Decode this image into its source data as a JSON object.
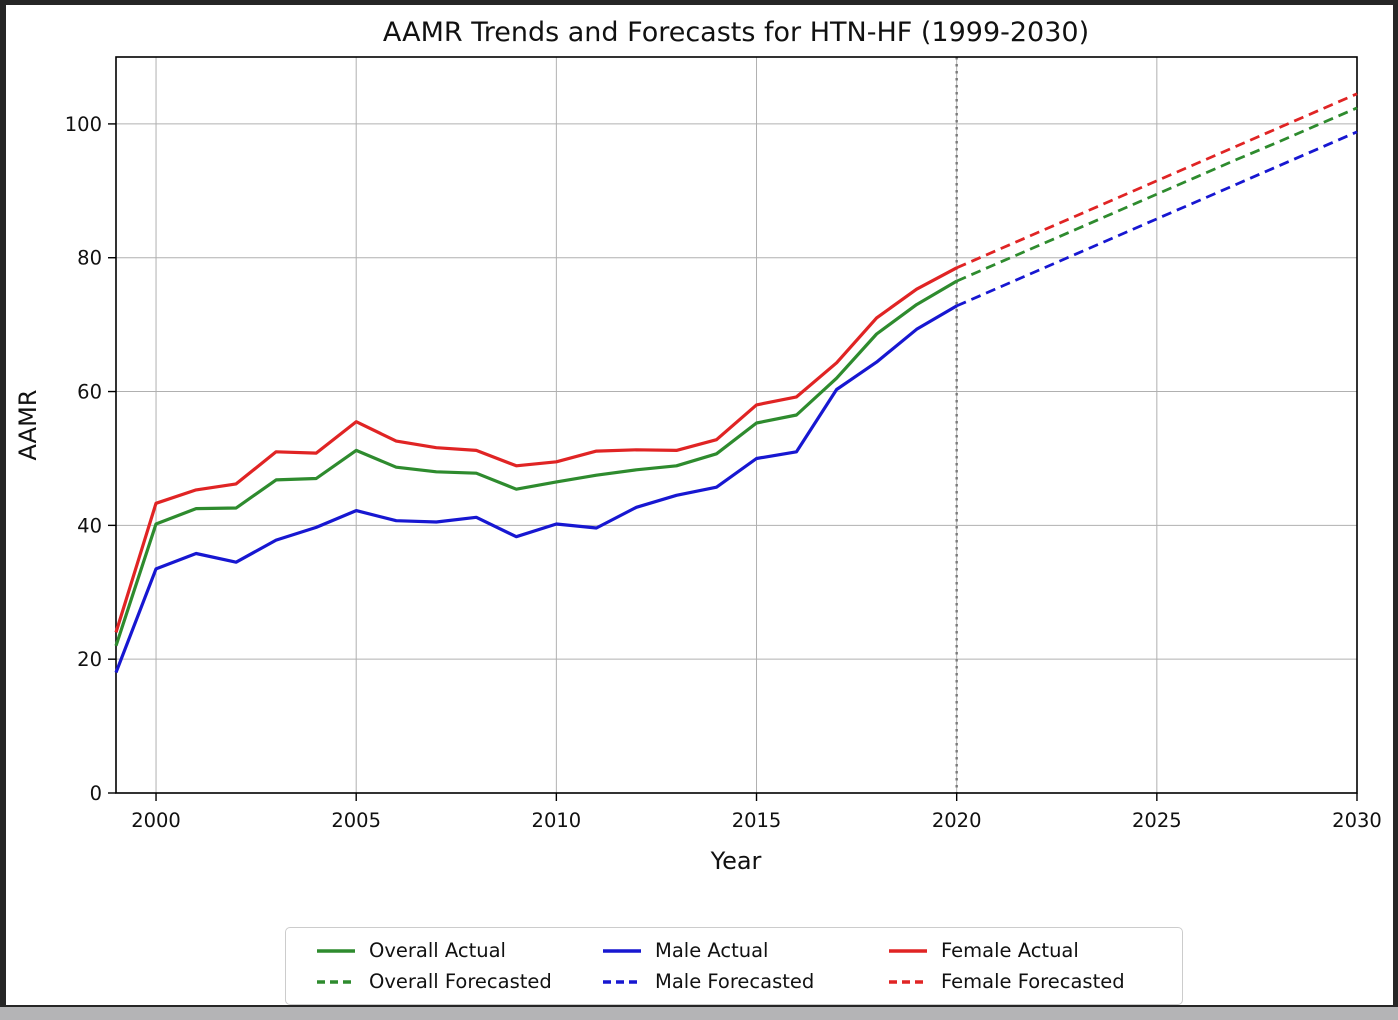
{
  "chart_data": {
    "type": "line",
    "title": "AAMR Trends and Forecasts for HTN-HF (1999-2030)",
    "xlabel": "Year",
    "ylabel": "AAMR",
    "xlim": [
      1999,
      2030
    ],
    "ylim": [
      0,
      110
    ],
    "x_ticks": [
      2000,
      2005,
      2010,
      2015,
      2020,
      2025,
      2030
    ],
    "y_ticks": [
      0,
      20,
      40,
      60,
      80,
      100
    ],
    "grid": true,
    "grid_color": "#b0b0b0",
    "forecast_divider_x": 2020,
    "divider_color": "#7a7a7a",
    "legend_position": "bottom-center",
    "legend_columns": [
      [
        0,
        3
      ],
      [
        1,
        4
      ],
      [
        2,
        5
      ]
    ],
    "series": [
      {
        "id": "overall-actual",
        "name": "Overall Actual",
        "color": "#2e8b2e",
        "dashed": false,
        "x": [
          1999,
          2000,
          2001,
          2002,
          2003,
          2004,
          2005,
          2006,
          2007,
          2008,
          2009,
          2010,
          2011,
          2012,
          2013,
          2014,
          2015,
          2016,
          2017,
          2018,
          2019,
          2020
        ],
        "y": [
          22.0,
          40.2,
          42.5,
          42.6,
          46.8,
          47.0,
          51.2,
          48.7,
          48.0,
          47.8,
          45.4,
          46.5,
          47.5,
          48.3,
          48.9,
          50.7,
          55.3,
          56.5,
          62.0,
          68.6,
          73.0,
          76.5
        ]
      },
      {
        "id": "male-actual",
        "name": "Male Actual",
        "color": "#1717d1",
        "dashed": false,
        "x": [
          1999,
          2000,
          2001,
          2002,
          2003,
          2004,
          2005,
          2006,
          2007,
          2008,
          2009,
          2010,
          2011,
          2012,
          2013,
          2014,
          2015,
          2016,
          2017,
          2018,
          2019,
          2020
        ],
        "y": [
          18.0,
          33.5,
          35.8,
          34.5,
          37.8,
          39.7,
          42.2,
          40.7,
          40.5,
          41.2,
          38.3,
          40.2,
          39.6,
          42.7,
          44.5,
          45.7,
          50.0,
          51.0,
          60.3,
          64.4,
          69.3,
          72.8
        ]
      },
      {
        "id": "female-actual",
        "name": "Female Actual",
        "color": "#e02424",
        "dashed": false,
        "x": [
          1999,
          2000,
          2001,
          2002,
          2003,
          2004,
          2005,
          2006,
          2007,
          2008,
          2009,
          2010,
          2011,
          2012,
          2013,
          2014,
          2015,
          2016,
          2017,
          2018,
          2019,
          2020
        ],
        "y": [
          24.0,
          43.3,
          45.3,
          46.2,
          51.0,
          50.8,
          55.5,
          52.6,
          51.6,
          51.2,
          48.9,
          49.5,
          51.1,
          51.3,
          51.2,
          52.8,
          58.0,
          59.2,
          64.3,
          71.0,
          75.3,
          78.5
        ]
      },
      {
        "id": "overall-forecasted",
        "name": "Overall Forecasted",
        "color": "#2e8b2e",
        "dashed": true,
        "x": [
          2020,
          2021,
          2022,
          2023,
          2024,
          2025,
          2026,
          2027,
          2028,
          2029,
          2030
        ],
        "y": [
          76.5,
          79.1,
          81.7,
          84.3,
          86.9,
          89.5,
          92.1,
          94.7,
          97.2,
          99.8,
          102.4
        ]
      },
      {
        "id": "male-forecasted",
        "name": "Male Forecasted",
        "color": "#1717d1",
        "dashed": true,
        "x": [
          2020,
          2021,
          2022,
          2023,
          2024,
          2025,
          2026,
          2027,
          2028,
          2029,
          2030
        ],
        "y": [
          72.8,
          75.4,
          78.0,
          80.6,
          83.2,
          85.8,
          88.4,
          91.0,
          93.6,
          96.2,
          98.8
        ]
      },
      {
        "id": "female-forecasted",
        "name": "Female Forecasted",
        "color": "#e02424",
        "dashed": true,
        "x": [
          2020,
          2021,
          2022,
          2023,
          2024,
          2025,
          2026,
          2027,
          2028,
          2029,
          2030
        ],
        "y": [
          78.5,
          81.1,
          83.7,
          86.3,
          88.9,
          91.5,
          94.1,
          96.7,
          99.3,
          101.9,
          104.5
        ]
      }
    ]
  }
}
